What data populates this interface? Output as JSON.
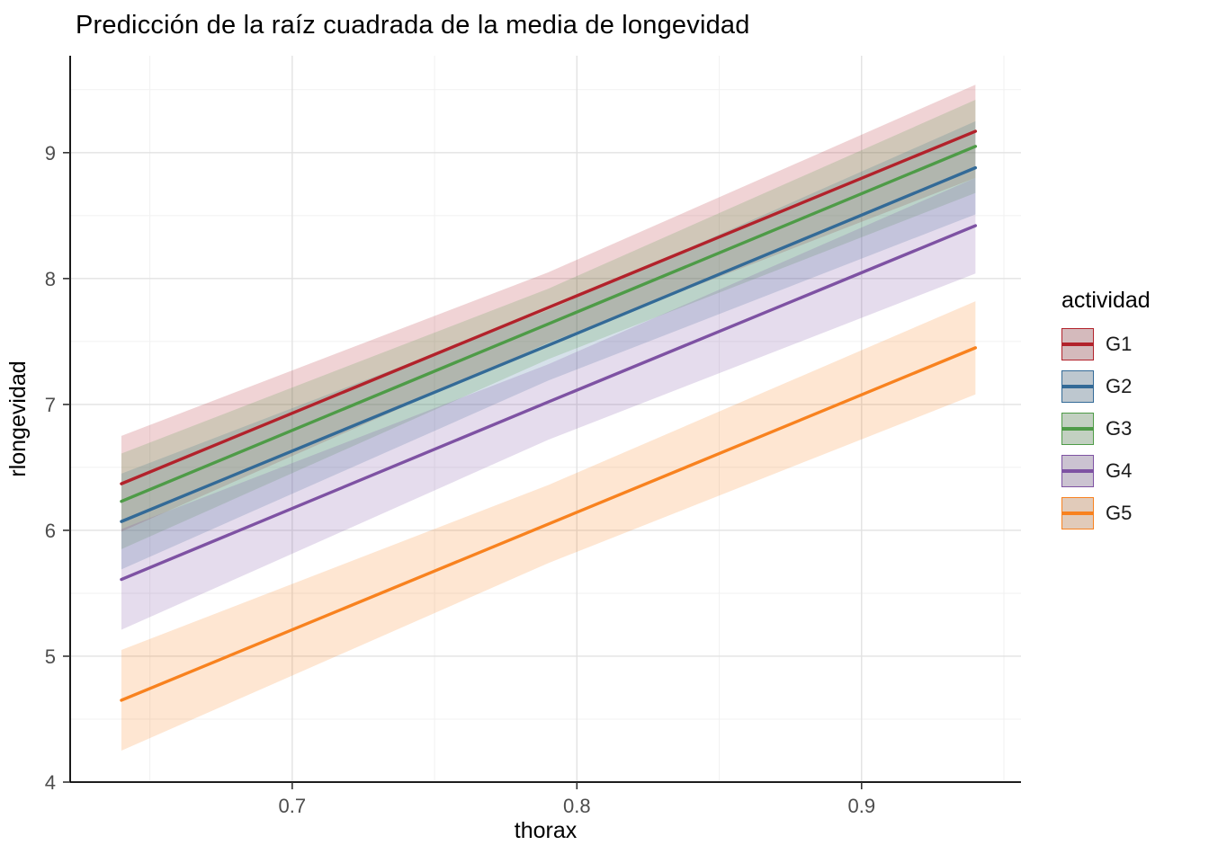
{
  "page": {
    "background": "#ffffff"
  },
  "chart_data": {
    "type": "line",
    "title": "Predicción de la raíz cuadrada de la media de longevidad",
    "xlabel": "thorax",
    "ylabel": "rlongevidad",
    "legend_title": "actividad",
    "legend_position": "right",
    "grid": true,
    "xlim": [
      0.622,
      0.956
    ],
    "ylim": [
      4,
      9.77
    ],
    "x_ticks": [
      "0.7",
      "0.8",
      "0.9"
    ],
    "x_tick_values": [
      0.7,
      0.8,
      0.9
    ],
    "y_ticks": [
      "4",
      "5",
      "6",
      "7",
      "8",
      "9"
    ],
    "y_tick_values": [
      4,
      5,
      6,
      7,
      8,
      9
    ],
    "x_minor": [
      0.65,
      0.75,
      0.85,
      0.95
    ],
    "y_minor": [
      4.5,
      5.5,
      6.5,
      7.5,
      8.5,
      9.5
    ],
    "x": [
      0.64,
      0.79,
      0.94
    ],
    "series": [
      {
        "name": "G1",
        "color": "#b2222b",
        "y": [
          6.37,
          7.77,
          9.17
        ],
        "lower": [
          5.99,
          7.49,
          8.8
        ],
        "upper": [
          6.75,
          8.05,
          9.54
        ]
      },
      {
        "name": "G2",
        "color": "#336a97",
        "y": [
          6.07,
          7.47,
          8.88
        ],
        "lower": [
          5.69,
          7.19,
          8.51
        ],
        "upper": [
          6.45,
          7.75,
          9.25
        ]
      },
      {
        "name": "G3",
        "color": "#4e9b47",
        "y": [
          6.23,
          7.64,
          9.05
        ],
        "lower": [
          5.85,
          7.36,
          8.68
        ],
        "upper": [
          6.61,
          7.92,
          9.42
        ]
      },
      {
        "name": "G4",
        "color": "#7e52a3",
        "y": [
          5.61,
          7.02,
          8.42
        ],
        "lower": [
          5.21,
          6.72,
          8.04
        ],
        "upper": [
          6.01,
          7.32,
          8.8
        ]
      },
      {
        "name": "G5",
        "color": "#f8821f",
        "y": [
          4.65,
          6.05,
          7.45
        ],
        "lower": [
          4.25,
          5.74,
          7.08
        ],
        "upper": [
          5.05,
          6.36,
          7.82
        ]
      }
    ],
    "colors": {
      "grid_major": "#e2e2e2",
      "grid_minor": "#f1f1f1",
      "axis_line": "#000000",
      "tick_mark": "#333333",
      "tick_label": "#4d4d4d",
      "axis_title": "#000000",
      "ribbon_opacity": 0.2
    }
  }
}
